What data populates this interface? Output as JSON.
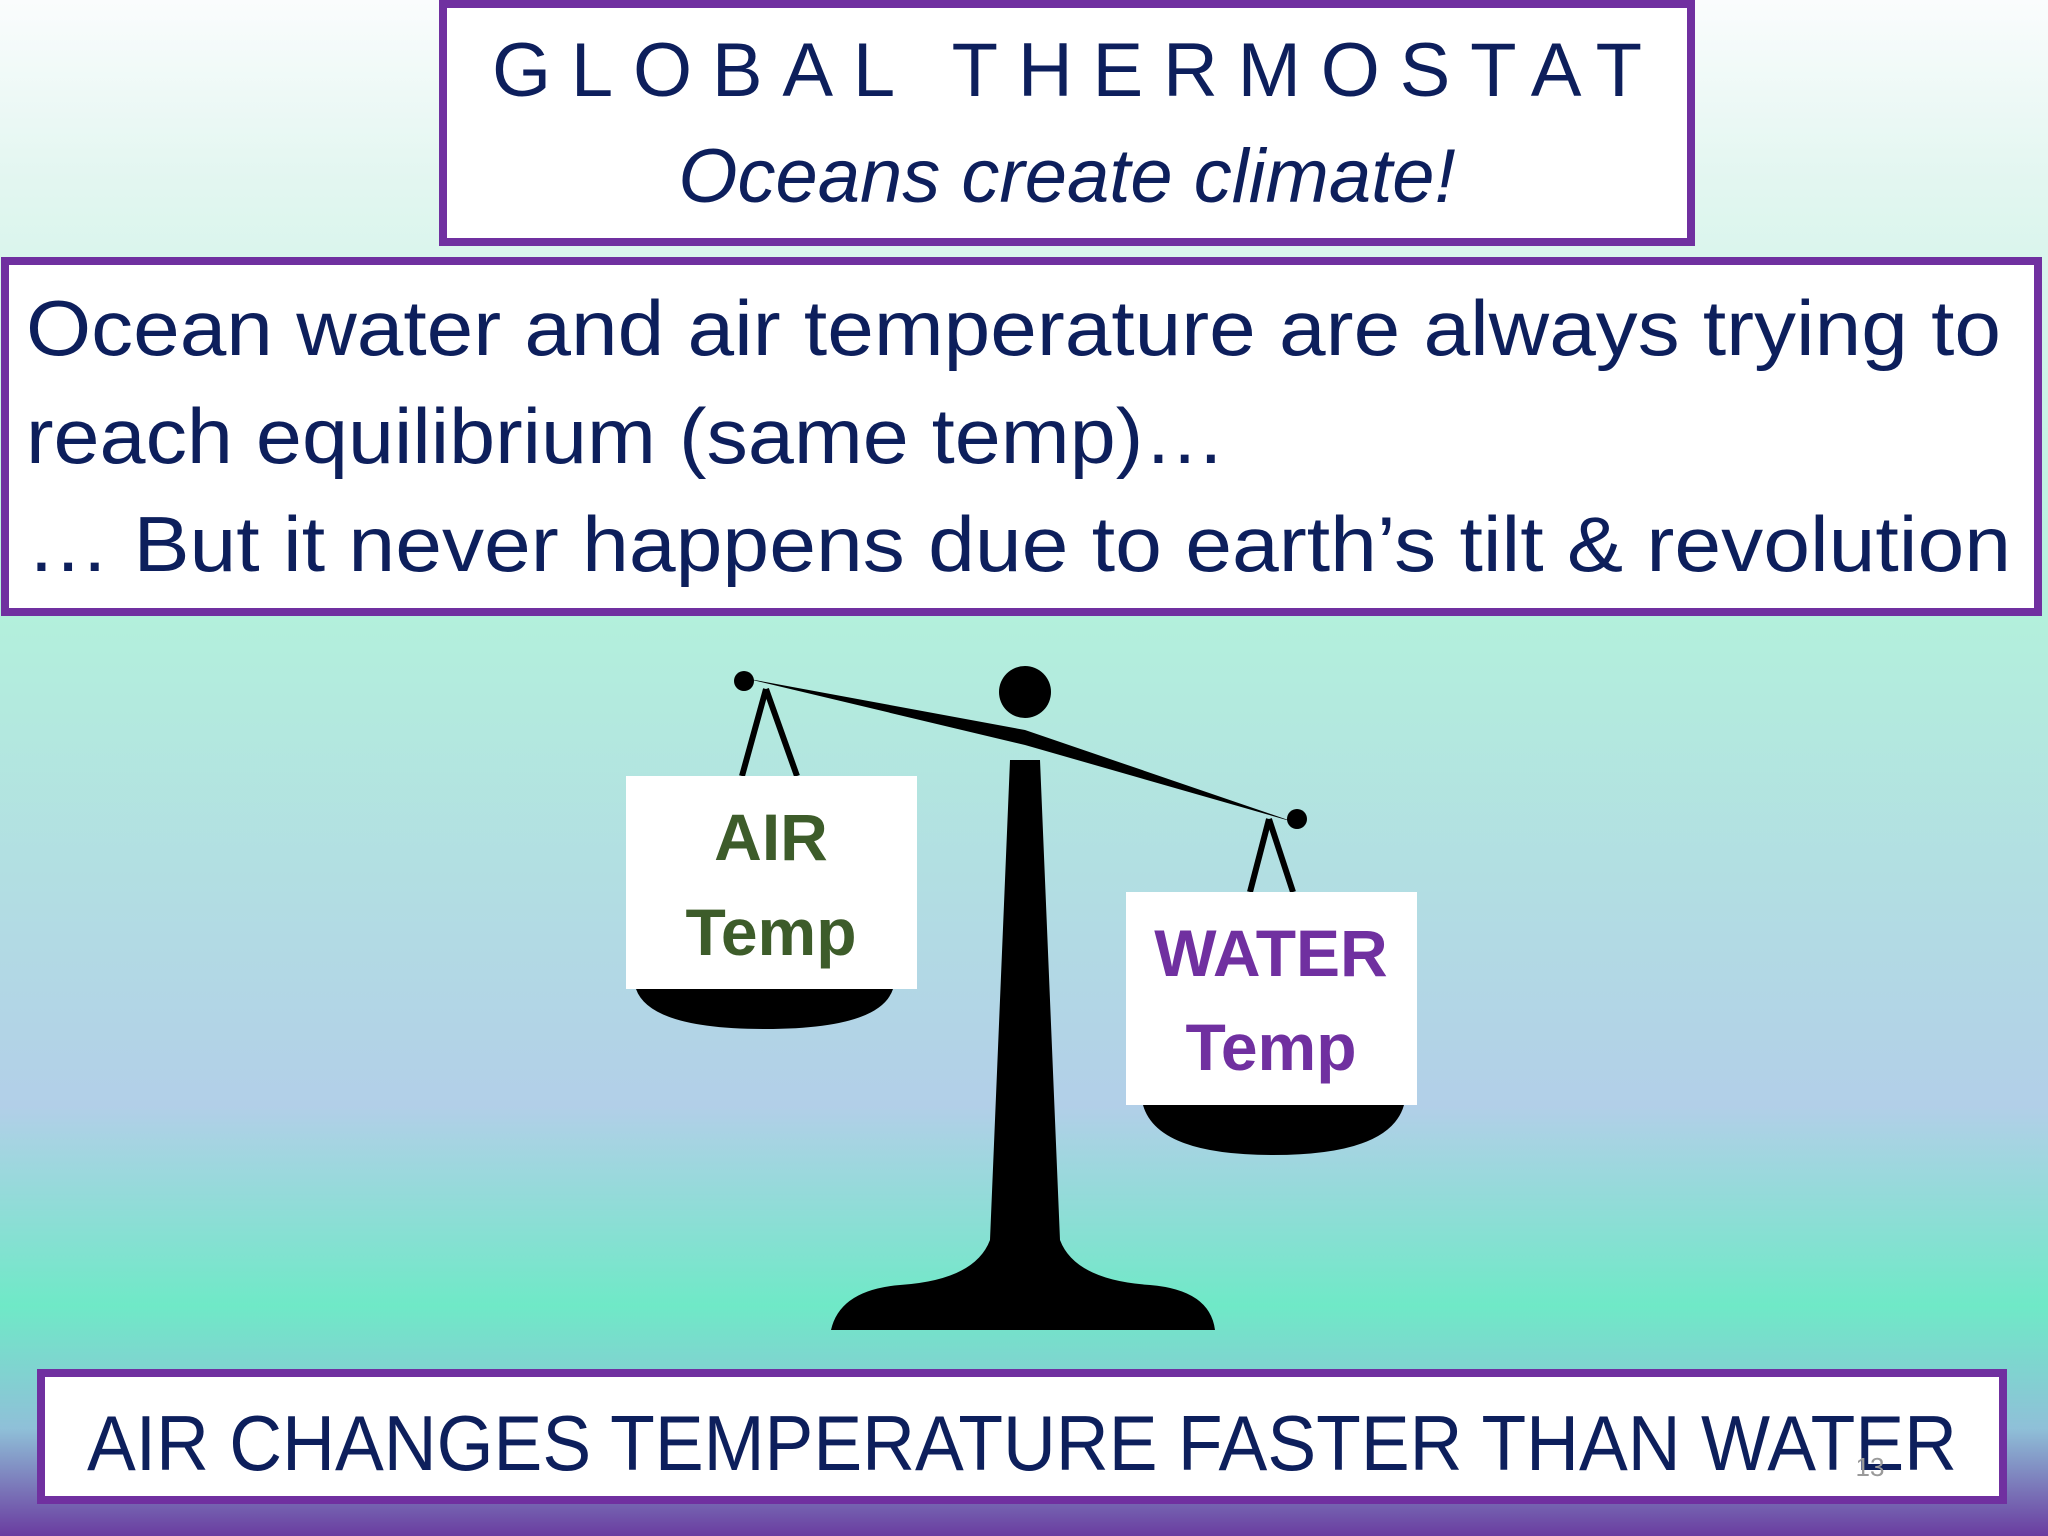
{
  "header": {
    "title": "GLOBAL THERMOSTAT",
    "subtitle": "Oceans create climate!"
  },
  "body": {
    "lines": [
      "Ocean water and air temperature are always trying to",
      "reach equilibrium (same temp)…",
      "… But it never happens due to earth’s tilt & revolution"
    ]
  },
  "scale": {
    "left": {
      "label": "AIR",
      "sublabel": "Temp"
    },
    "right": {
      "label": "WATER",
      "sublabel": "Temp"
    }
  },
  "footer": {
    "text": "AIR CHANGES TEMPERATURE FASTER THAN WATER",
    "slide_number": "13"
  }
}
